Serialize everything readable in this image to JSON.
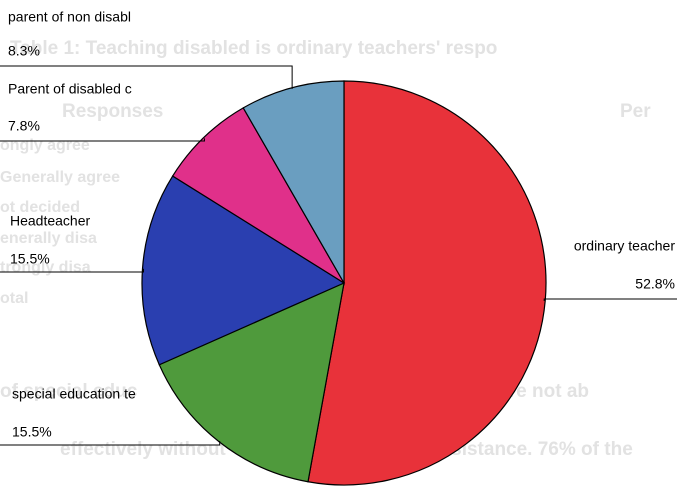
{
  "chart_data": {
    "type": "pie",
    "categories": [
      "ordinary teacher",
      "special education te",
      "Headteacher",
      "Parent of disabled c",
      "parent of non disabl"
    ],
    "values": [
      52.8,
      15.5,
      15.5,
      7.8,
      8.3
    ],
    "value_labels": [
      "52.8%",
      "15.5%",
      "15.5%",
      "7.8%",
      "8.3%"
    ],
    "colors": [
      "#e8323a",
      "#4f9a3c",
      "#2a3fb0",
      "#e0308a",
      "#6a9ec0"
    ]
  },
  "background_text": [
    "Table 1:  Teaching disabled is ordinary teachers' respo",
    "Responses",
    "Per",
    "ongly agree",
    "Generally agree",
    "ot decided",
    "enerally disa",
    "trongly disa",
    "otal",
    "of special educ",
    "teachers were not ab",
    "effectively without",
    "assistance. 76% of the"
  ]
}
